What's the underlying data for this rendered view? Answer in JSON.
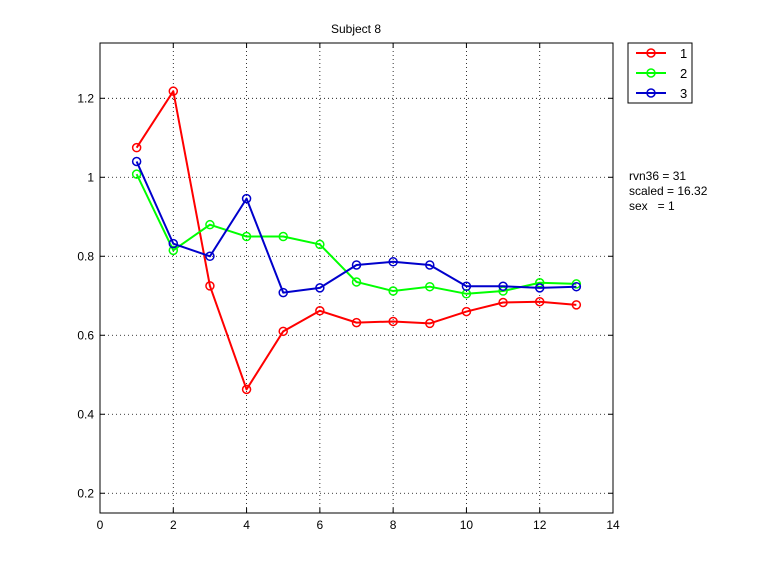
{
  "chart_data": {
    "type": "line",
    "title": "Subject 8",
    "xlabel": "",
    "ylabel": "",
    "xlim": [
      0,
      14
    ],
    "ylim": [
      0.15,
      1.34
    ],
    "xticks": [
      0,
      2,
      4,
      6,
      8,
      10,
      12,
      14
    ],
    "yticks": [
      0.2,
      0.4,
      0.6,
      0.8,
      1,
      1.2
    ],
    "xtick_labels": [
      "0",
      "2",
      "4",
      "6",
      "8",
      "10",
      "12",
      "14"
    ],
    "ytick_labels": [
      "0.2",
      "0.4",
      "0.6",
      "0.8",
      "1",
      "1.2"
    ],
    "grid": true,
    "legend_position": "outside-top-right",
    "x": [
      1,
      2,
      3,
      4,
      5,
      6,
      7,
      8,
      9,
      10,
      11,
      12,
      13
    ],
    "series": [
      {
        "name": "1",
        "color": "#ff0000",
        "values": [
          1.075,
          1.218,
          0.725,
          0.463,
          0.61,
          0.662,
          0.632,
          0.635,
          0.63,
          0.66,
          0.683,
          0.685,
          0.677
        ]
      },
      {
        "name": "2",
        "color": "#00ff00",
        "values": [
          1.008,
          0.815,
          0.88,
          0.85,
          0.85,
          0.83,
          0.735,
          0.712,
          0.723,
          0.705,
          0.712,
          0.733,
          0.73
        ]
      },
      {
        "name": "3",
        "color": "#0000cc",
        "values": [
          1.04,
          0.832,
          0.8,
          0.946,
          0.708,
          0.72,
          0.778,
          0.786,
          0.778,
          0.724,
          0.724,
          0.72,
          0.723
        ]
      }
    ],
    "annotations": [
      "rvn36 = 31",
      "scaled = 16.32",
      "sex   = 1"
    ]
  }
}
